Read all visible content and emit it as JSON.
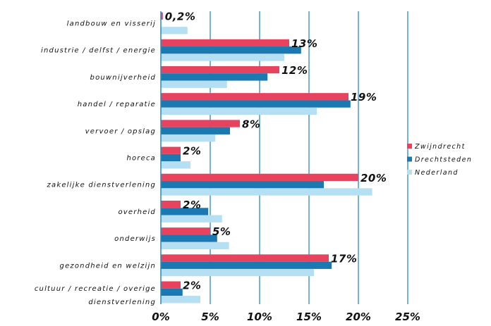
{
  "chart_data": {
    "type": "bar",
    "orientation": "horizontal",
    "categories": [
      [
        "landbouw en visserij"
      ],
      [
        "industrie / delfst / energie"
      ],
      [
        "bouwnijverheid"
      ],
      [
        "handel / reparatie"
      ],
      [
        "vervoer / opslag"
      ],
      [
        "horeca"
      ],
      [
        "zakelijke dienstverlening"
      ],
      [
        "overheid"
      ],
      [
        "onderwijs"
      ],
      [
        "gezondheid en welzijn"
      ],
      [
        "cultuur / recreatie / overige",
        "dienstverlening"
      ]
    ],
    "series": [
      {
        "name": "Zwijndrecht",
        "color": "#e8435e",
        "values": [
          0.2,
          13,
          12,
          19,
          8,
          2,
          20,
          2,
          5,
          17,
          2
        ]
      },
      {
        "name": "Drechtsteden",
        "color": "#1b78b0",
        "values": [
          0.0,
          14.2,
          10.8,
          19.2,
          7.0,
          2.0,
          16.5,
          4.8,
          5.7,
          17.3,
          2.2
        ]
      },
      {
        "name": "Nederland",
        "color": "#b5e0f4",
        "values": [
          2.7,
          12.5,
          6.7,
          15.8,
          5.5,
          3.0,
          21.4,
          6.2,
          6.9,
          15.5,
          4.0
        ]
      }
    ],
    "data_labels": [
      "0,2%",
      "13%",
      "12%",
      "19%",
      "8%",
      "2%",
      "20%",
      "2%",
      "5%",
      "17%",
      "2%"
    ],
    "x_ticks": [
      "0%",
      "5%",
      "10%",
      "15%",
      "20%",
      "25%"
    ],
    "xlim": [
      0,
      25
    ],
    "grid": true,
    "legend_position": "right"
  }
}
